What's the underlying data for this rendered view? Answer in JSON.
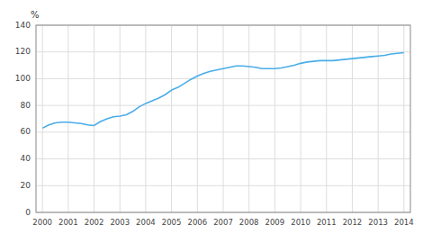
{
  "chart_data": {
    "type": "line",
    "ylabel": "%",
    "x": [
      2000.0,
      2000.25,
      2000.5,
      2000.75,
      2001.0,
      2001.25,
      2001.5,
      2001.75,
      2002.0,
      2002.25,
      2002.5,
      2002.75,
      2003.0,
      2003.25,
      2003.5,
      2003.75,
      2004.0,
      2004.25,
      2004.5,
      2004.75,
      2005.0,
      2005.25,
      2005.5,
      2005.75,
      2006.0,
      2006.25,
      2006.5,
      2006.75,
      2007.0,
      2007.25,
      2007.5,
      2007.75,
      2008.0,
      2008.25,
      2008.5,
      2008.75,
      2009.0,
      2009.25,
      2009.5,
      2009.75,
      2010.0,
      2010.25,
      2010.5,
      2010.75,
      2011.0,
      2011.25,
      2011.5,
      2011.75,
      2012.0,
      2012.25,
      2012.5,
      2012.75,
      2013.0,
      2013.25,
      2013.5,
      2013.75,
      2014.0
    ],
    "values": [
      63.0,
      65.5,
      67.0,
      67.5,
      67.5,
      67.0,
      66.5,
      65.5,
      65.0,
      68.0,
      70.0,
      71.5,
      72.0,
      73.0,
      75.5,
      79.0,
      81.5,
      83.5,
      85.5,
      88.0,
      91.5,
      93.5,
      96.5,
      99.5,
      102.0,
      104.0,
      105.5,
      106.5,
      107.5,
      108.5,
      109.5,
      109.5,
      109.0,
      108.5,
      107.5,
      107.5,
      107.5,
      108.0,
      109.0,
      110.0,
      111.5,
      112.5,
      113.0,
      113.5,
      113.5,
      113.5,
      114.0,
      114.5,
      115.0,
      115.5,
      116.0,
      116.5,
      117.0,
      117.5,
      118.5,
      119.0,
      119.5
    ],
    "color": "#4AADE8",
    "xlim": [
      1999.75,
      2014.25
    ],
    "xticks": [
      2000,
      2001,
      2002,
      2003,
      2004,
      2005,
      2006,
      2007,
      2008,
      2009,
      2010,
      2011,
      2012,
      2013,
      2014
    ],
    "ylim": [
      0,
      140
    ],
    "yticks": [
      0,
      20,
      40,
      60,
      80,
      100,
      120,
      140
    ],
    "grid": true
  }
}
